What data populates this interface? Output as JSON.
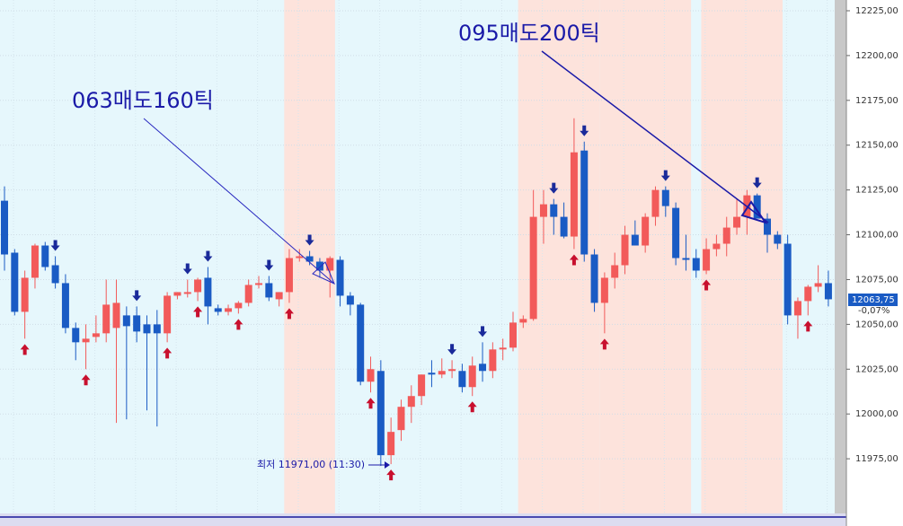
{
  "chart_data": {
    "type": "candlestick",
    "open": [
      12119,
      12090,
      12057,
      12076,
      12094,
      12083,
      12073,
      12048,
      12040,
      12043,
      12045,
      12048,
      12055,
      12055,
      12050,
      12050,
      12045,
      12066,
      12067,
      12068,
      12076,
      12059,
      12057,
      12059,
      12062,
      12072,
      12073,
      12064,
      12068,
      12087,
      12088,
      12085,
      12080,
      12086,
      12066,
      12061,
      12018,
      12024,
      11977,
      11991,
      12004,
      12010,
      12023,
      12022,
      12024,
      12024,
      12015,
      12028,
      12024,
      12036,
      12037,
      12051,
      12053,
      12110,
      12117,
      12110,
      12099,
      12147,
      12089,
      12062,
      12076,
      12083,
      12100,
      12094,
      12110,
      12125,
      12115,
      12087,
      12087,
      12080,
      12092,
      12095,
      12104,
      12110,
      12122,
      12109,
      12100,
      12095,
      12055,
      12063,
      12071,
      12073
    ],
    "high": [
      12127,
      12092,
      12080,
      12095,
      12096,
      12088,
      12078,
      12051,
      12050,
      12055,
      12075,
      12075,
      12060,
      12060,
      12055,
      12058,
      12068,
      12068,
      12075,
      12076,
      12082,
      12061,
      12061,
      12063,
      12075,
      12077,
      12077,
      12068,
      12092,
      12092,
      12091,
      12087,
      12088,
      12088,
      12068,
      12062,
      12032,
      12030,
      11998,
      12008,
      12016,
      12022,
      12030,
      12031,
      12030,
      12028,
      12032,
      12040,
      12040,
      12042,
      12057,
      12055,
      12125,
      12125,
      12120,
      12118,
      12165,
      12152,
      12092,
      12079,
      12090,
      12105,
      12108,
      12112,
      12127,
      12127,
      12118,
      12100,
      12092,
      12098,
      12100,
      12110,
      12120,
      12125,
      12123,
      12112,
      12102,
      12100,
      12065,
      12072,
      12083,
      12080
    ],
    "low": [
      12080,
      12055,
      12042,
      12070,
      12080,
      12070,
      12045,
      12030,
      12025,
      12040,
      12040,
      11995,
      11997,
      12040,
      12002,
      11993,
      12040,
      12064,
      12065,
      12063,
      12050,
      12055,
      12055,
      12056,
      12060,
      12070,
      12063,
      12060,
      12062,
      12085,
      12083,
      12076,
      12065,
      12060,
      12055,
      12016,
      12012,
      11971,
      11972,
      11985,
      11995,
      12005,
      12015,
      12020,
      12020,
      12012,
      12010,
      12018,
      12020,
      12030,
      12035,
      12048,
      12052,
      12095,
      12100,
      12098,
      12092,
      12085,
      12057,
      12045,
      12070,
      12078,
      12095,
      12090,
      12105,
      12110,
      12083,
      12080,
      12076,
      12078,
      12088,
      12088,
      12100,
      12100,
      12110,
      12090,
      12092,
      12050,
      12042,
      12055,
      12068,
      12060
    ],
    "close": [
      12089,
      12057,
      12076,
      12094,
      12082,
      12073,
      12048,
      12040,
      12042,
      12045,
      12061,
      12062,
      12049,
      12046,
      12045,
      12045,
      12066,
      12068,
      12068,
      12075,
      12060,
      12057,
      12059,
      12062,
      12072,
      12073,
      12065,
      12068,
      12087,
      12088,
      12085,
      12080,
      12087,
      12066,
      12061,
      12018,
      12025,
      11977,
      11990,
      12004,
      12010,
      12022,
      12022,
      12024,
      12025,
      12015,
      12027,
      12024,
      12036,
      12037,
      12051,
      12053,
      12110,
      12117,
      12110,
      12099,
      12146,
      12089,
      12062,
      12076,
      12083,
      12100,
      12094,
      12110,
      12125,
      12116,
      12087,
      12086,
      12080,
      12092,
      12095,
      12104,
      12110,
      12122,
      12109,
      12100,
      12095,
      12055,
      12063,
      12071,
      12073,
      12064
    ],
    "up_color": "#f25a5a",
    "down_color": "#1a5bc4",
    "sell_signals": [
      5,
      13,
      18,
      20,
      26,
      30,
      44,
      47,
      54,
      57,
      65,
      74
    ],
    "buy_signals": [
      2,
      8,
      16,
      19,
      23,
      28,
      36,
      38,
      46,
      56,
      59,
      69,
      79
    ],
    "shaded_ranges": [
      [
        28,
        32
      ],
      [
        51,
        58
      ],
      [
        59,
        67
      ],
      [
        69,
        76
      ]
    ],
    "ylim": [
      11945.5,
      12231
    ],
    "yticks": [
      {
        "value": 11975,
        "label": "11975,00"
      },
      {
        "value": 12000,
        "label": "12000,00"
      },
      {
        "value": 12025,
        "label": "12025,00"
      },
      {
        "value": 12050,
        "label": "12050,00"
      },
      {
        "value": 12075,
        "label": "12075,00"
      },
      {
        "value": 12100,
        "label": "12100,00"
      },
      {
        "value": 12125,
        "label": "12125,00"
      },
      {
        "value": 12150,
        "label": "12150,00"
      },
      {
        "value": 12175,
        "label": "12175,00"
      },
      {
        "value": 12200,
        "label": "12200,00"
      },
      {
        "value": 12225,
        "label": "12225,00"
      }
    ],
    "annotations": [
      "063매도160틱",
      "095매도200틱"
    ],
    "low_label": "최저 11971,00 (11:30)",
    "last_price_label": "12063,75",
    "change_label": "-0,07%"
  }
}
